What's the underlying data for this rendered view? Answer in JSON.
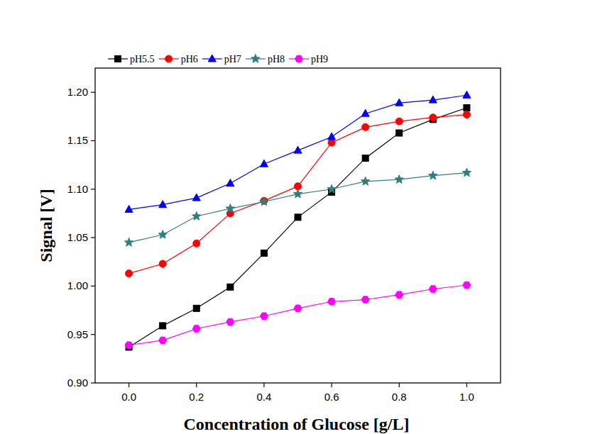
{
  "chart_data": {
    "type": "line",
    "x_label": "Concentration of Glucose [g/L]",
    "y_label": "Signal [V]",
    "x": [
      0.0,
      0.1,
      0.2,
      0.3,
      0.4,
      0.5,
      0.6,
      0.7,
      0.8,
      0.9,
      1.0
    ],
    "series": [
      {
        "name": "pH5.5",
        "color": "#000000",
        "marker": "square",
        "values": [
          0.937,
          0.959,
          0.977,
          0.999,
          1.034,
          1.071,
          1.097,
          1.132,
          1.158,
          1.172,
          1.184
        ]
      },
      {
        "name": "pH6",
        "color": "#ff0000",
        "marker": "circle",
        "values": [
          1.013,
          1.023,
          1.044,
          1.075,
          1.088,
          1.103,
          1.148,
          1.164,
          1.17,
          1.174,
          1.177
        ]
      },
      {
        "name": "pH7",
        "color": "#0000ff",
        "marker": "triangle",
        "values": [
          1.079,
          1.084,
          1.091,
          1.106,
          1.126,
          1.14,
          1.154,
          1.178,
          1.189,
          1.192,
          1.197
        ]
      },
      {
        "name": "pH8",
        "color": "#2f7f7f",
        "marker": "star",
        "values": [
          1.045,
          1.053,
          1.072,
          1.08,
          1.087,
          1.095,
          1.1,
          1.108,
          1.11,
          1.114,
          1.117
        ]
      },
      {
        "name": "pH9",
        "color": "#ff00ff",
        "marker": "hexagon",
        "values": [
          0.939,
          0.944,
          0.956,
          0.963,
          0.969,
          0.977,
          0.984,
          0.986,
          0.991,
          0.997,
          1.001
        ]
      }
    ],
    "xlim": [
      -0.1,
      1.1
    ],
    "ylim": [
      0.9,
      1.225
    ],
    "xticks": [
      {
        "value": 0,
        "label": "0.0"
      },
      {
        "value": 0.2,
        "label": "0.2"
      },
      {
        "value": 0.4,
        "label": "0.4"
      },
      {
        "value": 0.6,
        "label": "0.6"
      },
      {
        "value": 0.8,
        "label": "0.8"
      },
      {
        "value": 1,
        "label": "1.0"
      }
    ],
    "yticks": [
      {
        "value": 0.9,
        "label": "0.90"
      },
      {
        "value": 0.95,
        "label": "0.95"
      },
      {
        "value": 1,
        "label": "1.00"
      },
      {
        "value": 1.05,
        "label": "1.05"
      },
      {
        "value": 1.1,
        "label": "1.10"
      },
      {
        "value": 1.15,
        "label": "1.15"
      },
      {
        "value": 1.2,
        "label": "1.20"
      }
    ],
    "legend": "top",
    "grid": false
  }
}
